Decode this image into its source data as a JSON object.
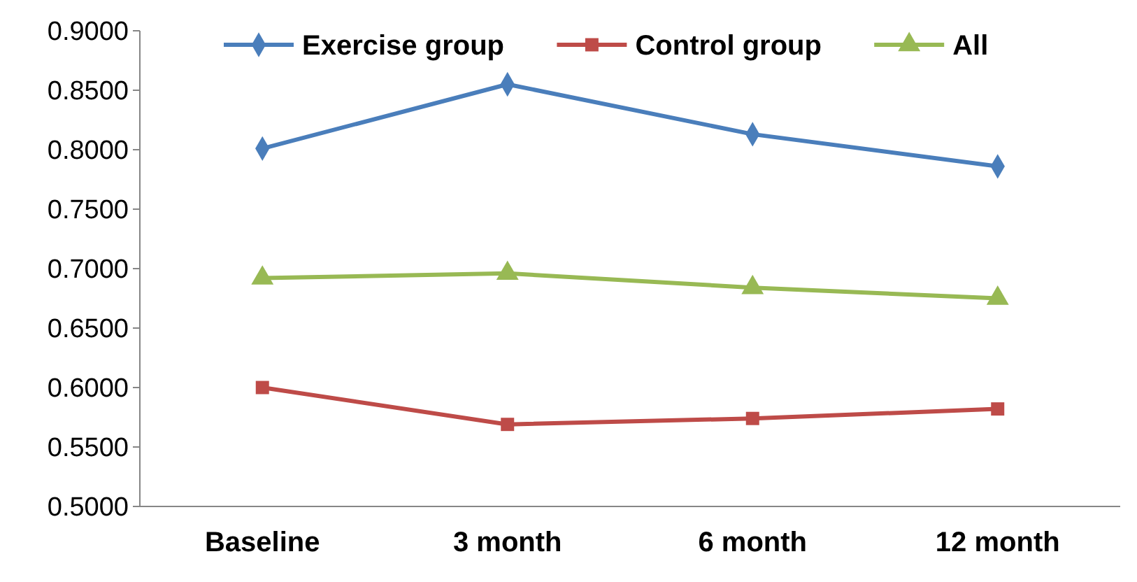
{
  "chart_data": {
    "type": "line",
    "categories": [
      "Baseline",
      "3 month",
      "6 month",
      "12 month"
    ],
    "series": [
      {
        "name": "Exercise group",
        "color": "#4a7ebb",
        "marker": "diamond",
        "values": [
          0.801,
          0.855,
          0.813,
          0.786
        ]
      },
      {
        "name": "Control group",
        "color": "#be4b48",
        "marker": "square",
        "values": [
          0.6,
          0.569,
          0.574,
          0.582
        ]
      },
      {
        "name": "All",
        "color": "#98b954",
        "marker": "triangle",
        "values": [
          0.692,
          0.696,
          0.684,
          0.675
        ]
      }
    ],
    "ylim": [
      0.5,
      0.9
    ],
    "yticks": [
      {
        "value": 0.5,
        "label": "0.5000"
      },
      {
        "value": 0.55,
        "label": "0.5500"
      },
      {
        "value": 0.6,
        "label": "0.6000"
      },
      {
        "value": 0.65,
        "label": "0.6500"
      },
      {
        "value": 0.7,
        "label": "0.7000"
      },
      {
        "value": 0.75,
        "label": "0.7500"
      },
      {
        "value": 0.8,
        "label": "0.8000"
      },
      {
        "value": 0.85,
        "label": "0.8500"
      },
      {
        "value": 0.9,
        "label": "0.9000"
      }
    ],
    "grid": false,
    "legend": "top",
    "line_style": "solid"
  }
}
